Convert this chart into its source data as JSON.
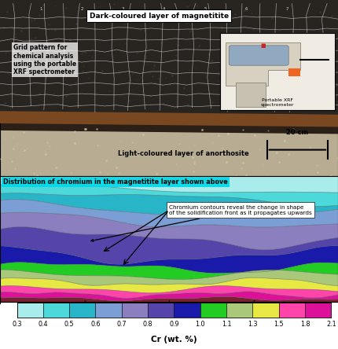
{
  "title_photo": "Dark-coloured layer of magnetitite",
  "label_grid": "Grid pattern for\nchemical analysis\nusing the portable\nXRF spectrometer",
  "label_anorthosite": "Light-coloured layer of anorthosite",
  "label_xrf": "Portable XRF\nspectrometer",
  "label_scale": "20 cm",
  "title_contour": "Distribution of chromium in the magnetitite layer shown above",
  "annotation_contour": "Chromium contours reveal the change in shape\nof the solidification front as it propagates upwards",
  "xlabel": "Cr (wt. %)",
  "colorbar_labels": [
    "0.3",
    "0.4",
    "0.5",
    "0.6",
    "0.7",
    "0.8",
    "0.9",
    "1.0",
    "1.1",
    "1.3",
    "1.5",
    "1.8",
    "2.1"
  ],
  "colorbar_colors": [
    "#a8ecec",
    "#4dd9d9",
    "#29b5c8",
    "#7b9fd4",
    "#8b7fc0",
    "#5544aa",
    "#1a1aaa",
    "#22cc22",
    "#aac87a",
    "#e8e844",
    "#ff44aa",
    "#dd1199",
    "#7a2030"
  ],
  "fig_bg": "#ffffff",
  "contour_title_bg": "#00d8e8"
}
